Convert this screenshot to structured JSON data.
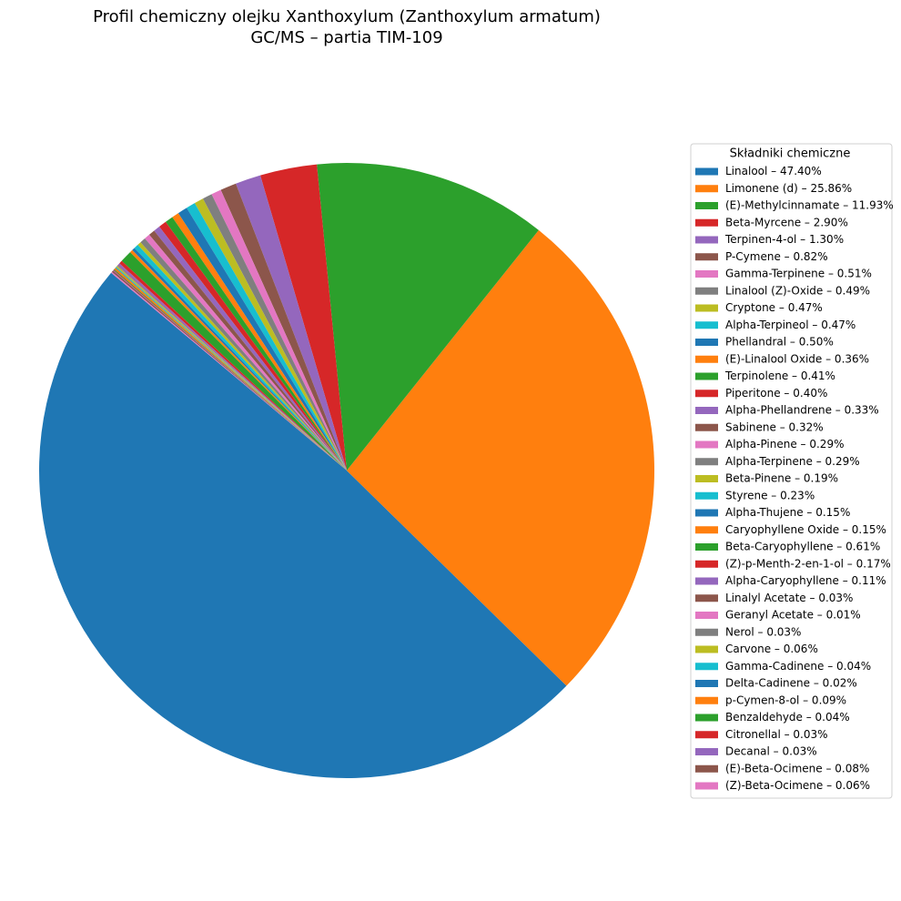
{
  "chart_data": {
    "type": "pie",
    "title": "Profil chemiczny olejku Xanthoxylum (Zanthoxylum armatum)",
    "subtitle": "GC/MS – partia TIM-109",
    "legend_title": "Składniki chemiczne",
    "start_angle": 140,
    "categories": [
      "Linalool – 47.40%",
      "Limonene (d) – 25.86%",
      "(E)-Methylcinnamate – 11.93%",
      "Beta-Myrcene – 2.90%",
      "Terpinen-4-ol – 1.30%",
      "P-Cymene – 0.82%",
      "Gamma-Terpinene – 0.51%",
      "Linalool (Z)-Oxide – 0.49%",
      "Cryptone – 0.47%",
      "Alpha-Terpineol – 0.47%",
      "Phellandral – 0.50%",
      "(E)-Linalool Oxide – 0.36%",
      "Terpinolene – 0.41%",
      "Piperitone – 0.40%",
      "Alpha-Phellandrene – 0.33%",
      "Sabinene – 0.32%",
      "Alpha-Pinene – 0.29%",
      "Alpha-Terpinene – 0.29%",
      "Beta-Pinene – 0.19%",
      "Styrene – 0.23%",
      "Alpha-Thujene – 0.15%",
      "Caryophyllene Oxide – 0.15%",
      "Beta-Caryophyllene – 0.61%",
      "(Z)-p-Menth-2-en-1-ol – 0.17%",
      "Alpha-Caryophyllene – 0.11%",
      "Linalyl Acetate – 0.03%",
      "Geranyl Acetate – 0.01%",
      "Nerol – 0.03%",
      "Carvone – 0.06%",
      "Gamma-Cadinene – 0.04%",
      "Delta-Cadinene – 0.02%",
      "p-Cymen-8-ol – 0.09%",
      "Benzaldehyde – 0.04%",
      "Citronellal – 0.03%",
      "Decanal – 0.03%",
      "(E)-Beta-Ocimene – 0.08%",
      "(Z)-Beta-Ocimene – 0.06%"
    ],
    "values": [
      47.4,
      25.86,
      11.93,
      2.9,
      1.3,
      0.82,
      0.51,
      0.49,
      0.47,
      0.47,
      0.5,
      0.36,
      0.41,
      0.4,
      0.33,
      0.32,
      0.29,
      0.29,
      0.19,
      0.23,
      0.15,
      0.15,
      0.61,
      0.17,
      0.11,
      0.03,
      0.01,
      0.03,
      0.06,
      0.04,
      0.02,
      0.09,
      0.04,
      0.03,
      0.03,
      0.08,
      0.06
    ],
    "colors": [
      "#1f77b4",
      "#ff7f0e",
      "#2ca02c",
      "#d62728",
      "#9467bd",
      "#8c564b",
      "#e377c2",
      "#7f7f7f",
      "#bcbd22",
      "#17becf",
      "#1f77b4",
      "#ff7f0e",
      "#2ca02c",
      "#d62728",
      "#9467bd",
      "#8c564b",
      "#e377c2",
      "#7f7f7f",
      "#bcbd22",
      "#17becf",
      "#1f77b4",
      "#ff7f0e",
      "#2ca02c",
      "#d62728",
      "#9467bd",
      "#8c564b",
      "#e377c2",
      "#7f7f7f",
      "#bcbd22",
      "#17becf",
      "#1f77b4",
      "#ff7f0e",
      "#2ca02c",
      "#d62728",
      "#9467bd",
      "#8c564b",
      "#e377c2"
    ]
  }
}
